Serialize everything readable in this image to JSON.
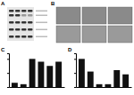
{
  "figure": {
    "panels": [
      "A",
      "B",
      "C",
      "D"
    ]
  },
  "chart_data": [
    {
      "type": "bar",
      "categories": [
        null,
        null,
        null,
        null,
        null,
        null
      ],
      "values": [
        0.15,
        0.1,
        1.0,
        0.9,
        0.75,
        0.9
      ],
      "color": "#111111",
      "ylim": [
        0,
        1.2
      ],
      "yticks": [
        0,
        0.5,
        1
      ],
      "tick_labels": false
    },
    {
      "type": "bar",
      "categories": [
        null,
        null,
        null,
        null,
        null,
        null
      ],
      "values": [
        1.0,
        0.55,
        0.1,
        0.1,
        0.6,
        0.45
      ],
      "color": "#111111",
      "ylim": [
        0,
        1.2
      ],
      "yticks": [
        0,
        0.5,
        1
      ],
      "tick_labels": false
    }
  ]
}
